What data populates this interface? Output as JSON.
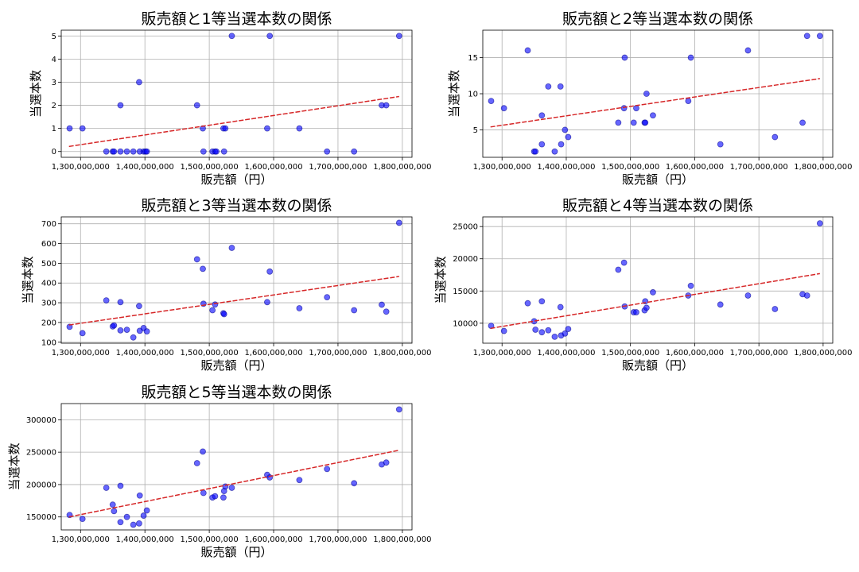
{
  "chart_data": [
    {
      "type": "scatter",
      "title": "販売額と1等当選本数の関係",
      "xlabel": "販売額（円）",
      "ylabel": "当選本数",
      "xlim": [
        1270000000,
        1815000000
      ],
      "ylim": [
        -0.25,
        5.25
      ],
      "xticks": [
        1300000000,
        1400000000,
        1500000000,
        1600000000,
        1700000000,
        1800000000
      ],
      "xtick_labels": [
        "1,300,000,000",
        "1,400,000,000",
        "1,500,000,000",
        "1,600,000,000",
        "1,700,000,000",
        "1,800,000,000"
      ],
      "yticks": [
        0,
        1,
        2,
        3,
        4,
        5
      ],
      "ytick_labels": [
        "0",
        "1",
        "2",
        "3",
        "4",
        "5"
      ],
      "grid": true,
      "trend": {
        "x": [
          1282000000,
          1795000000
        ],
        "y": [
          0.22,
          2.38
        ]
      },
      "points": [
        [
          1283000000,
          1
        ],
        [
          1303000000,
          1
        ],
        [
          1340000000,
          0
        ],
        [
          1350000000,
          0
        ],
        [
          1352000000,
          0
        ],
        [
          1362000000,
          2
        ],
        [
          1362000000,
          0
        ],
        [
          1372000000,
          0
        ],
        [
          1382000000,
          0
        ],
        [
          1391000000,
          3
        ],
        [
          1392000000,
          0
        ],
        [
          1398000000,
          0
        ],
        [
          1401000000,
          0
        ],
        [
          1403000000,
          0
        ],
        [
          1481000000,
          2
        ],
        [
          1490000000,
          1
        ],
        [
          1491000000,
          0
        ],
        [
          1505000000,
          0
        ],
        [
          1509000000,
          0
        ],
        [
          1511000000,
          0
        ],
        [
          1522000000,
          1
        ],
        [
          1523000000,
          0
        ],
        [
          1525000000,
          1
        ],
        [
          1535000000,
          5
        ],
        [
          1590000000,
          1
        ],
        [
          1594000000,
          5
        ],
        [
          1640000000,
          1
        ],
        [
          1683000000,
          0
        ],
        [
          1725000000,
          0
        ],
        [
          1768000000,
          2
        ],
        [
          1775000000,
          2
        ],
        [
          1795000000,
          5
        ]
      ]
    },
    {
      "type": "scatter",
      "title": "販売額と2等当選本数の関係",
      "xlabel": "販売額（円）",
      "ylabel": "当選本数",
      "xlim": [
        1270000000,
        1815000000
      ],
      "ylim": [
        1.2,
        18.8
      ],
      "xticks": [
        1300000000,
        1400000000,
        1500000000,
        1600000000,
        1700000000,
        1800000000
      ],
      "xtick_labels": [
        "1,300,000,000",
        "1,400,000,000",
        "1,500,000,000",
        "1,600,000,000",
        "1,700,000,000",
        "1,800,000,000"
      ],
      "yticks": [
        5,
        10,
        15
      ],
      "ytick_labels": [
        "5",
        "10",
        "15"
      ],
      "grid": true,
      "trend": {
        "x": [
          1282000000,
          1795000000
        ],
        "y": [
          5.4,
          12.1
        ]
      },
      "points": [
        [
          1283000000,
          9
        ],
        [
          1303000000,
          8
        ],
        [
          1340000000,
          16
        ],
        [
          1350000000,
          2
        ],
        [
          1352000000,
          2
        ],
        [
          1362000000,
          3
        ],
        [
          1362000000,
          7
        ],
        [
          1372000000,
          11
        ],
        [
          1382000000,
          2
        ],
        [
          1391000000,
          11
        ],
        [
          1392000000,
          3
        ],
        [
          1398000000,
          5
        ],
        [
          1403000000,
          4
        ],
        [
          1481000000,
          6
        ],
        [
          1490000000,
          8
        ],
        [
          1491000000,
          15
        ],
        [
          1505000000,
          6
        ],
        [
          1509000000,
          8
        ],
        [
          1522000000,
          6
        ],
        [
          1523000000,
          6
        ],
        [
          1525000000,
          10
        ],
        [
          1535000000,
          7
        ],
        [
          1590000000,
          9
        ],
        [
          1594000000,
          15
        ],
        [
          1640000000,
          3
        ],
        [
          1683000000,
          16
        ],
        [
          1725000000,
          4
        ],
        [
          1768000000,
          6
        ],
        [
          1775000000,
          18
        ],
        [
          1795000000,
          18
        ]
      ]
    },
    {
      "type": "scatter",
      "title": "販売額と3等当選本数の関係",
      "xlabel": "販売額（円）",
      "ylabel": "当選本数",
      "xlim": [
        1270000000,
        1815000000
      ],
      "ylim": [
        95,
        735
      ],
      "xticks": [
        1300000000,
        1400000000,
        1500000000,
        1600000000,
        1700000000,
        1800000000
      ],
      "xtick_labels": [
        "1,300,000,000",
        "1,400,000,000",
        "1,500,000,000",
        "1,600,000,000",
        "1,700,000,000",
        "1,800,000,000"
      ],
      "yticks": [
        100,
        200,
        300,
        400,
        500,
        600,
        700
      ],
      "ytick_labels": [
        "100",
        "200",
        "300",
        "400",
        "500",
        "600",
        "700"
      ],
      "grid": true,
      "trend": {
        "x": [
          1282000000,
          1795000000
        ],
        "y": [
          187,
          433
        ]
      },
      "points": [
        [
          1283000000,
          178
        ],
        [
          1303000000,
          146
        ],
        [
          1340000000,
          312
        ],
        [
          1350000000,
          180
        ],
        [
          1352000000,
          185
        ],
        [
          1362000000,
          160
        ],
        [
          1362000000,
          303
        ],
        [
          1372000000,
          163
        ],
        [
          1382000000,
          124
        ],
        [
          1391000000,
          283
        ],
        [
          1392000000,
          158
        ],
        [
          1398000000,
          172
        ],
        [
          1403000000,
          155
        ],
        [
          1481000000,
          520
        ],
        [
          1490000000,
          472
        ],
        [
          1491000000,
          295
        ],
        [
          1505000000,
          262
        ],
        [
          1509000000,
          291
        ],
        [
          1522000000,
          247
        ],
        [
          1523000000,
          242
        ],
        [
          1535000000,
          578
        ],
        [
          1590000000,
          303
        ],
        [
          1594000000,
          458
        ],
        [
          1640000000,
          272
        ],
        [
          1683000000,
          328
        ],
        [
          1725000000,
          262
        ],
        [
          1768000000,
          290
        ],
        [
          1775000000,
          255
        ],
        [
          1795000000,
          705
        ]
      ]
    },
    {
      "type": "scatter",
      "title": "販売額と4等当選本数の関係",
      "xlabel": "販売額（円）",
      "ylabel": "当選本数",
      "xlim": [
        1270000000,
        1815000000
      ],
      "ylim": [
        6900,
        26500
      ],
      "xticks": [
        1300000000,
        1400000000,
        1500000000,
        1600000000,
        1700000000,
        1800000000
      ],
      "xtick_labels": [
        "1,300,000,000",
        "1,400,000,000",
        "1,500,000,000",
        "1,600,000,000",
        "1,700,000,000",
        "1,800,000,000"
      ],
      "yticks": [
        10000,
        15000,
        20000,
        25000
      ],
      "ytick_labels": [
        "10000",
        "15000",
        "20000",
        "25000"
      ],
      "grid": true,
      "trend": {
        "x": [
          1282000000,
          1795000000
        ],
        "y": [
          9200,
          17700
        ]
      },
      "points": [
        [
          1283000000,
          9600
        ],
        [
          1303000000,
          8800
        ],
        [
          1340000000,
          13100
        ],
        [
          1350000000,
          10300
        ],
        [
          1352000000,
          9000
        ],
        [
          1362000000,
          13400
        ],
        [
          1362000000,
          8600
        ],
        [
          1372000000,
          8900
        ],
        [
          1382000000,
          7900
        ],
        [
          1391000000,
          12500
        ],
        [
          1392000000,
          8100
        ],
        [
          1398000000,
          8400
        ],
        [
          1403000000,
          9100
        ],
        [
          1481000000,
          18300
        ],
        [
          1490000000,
          19400
        ],
        [
          1491000000,
          12600
        ],
        [
          1505000000,
          11700
        ],
        [
          1509000000,
          11700
        ],
        [
          1522000000,
          12000
        ],
        [
          1523000000,
          13400
        ],
        [
          1525000000,
          12400
        ],
        [
          1535000000,
          14800
        ],
        [
          1590000000,
          14300
        ],
        [
          1594000000,
          15800
        ],
        [
          1640000000,
          12900
        ],
        [
          1683000000,
          14300
        ],
        [
          1725000000,
          12200
        ],
        [
          1768000000,
          14500
        ],
        [
          1775000000,
          14300
        ],
        [
          1795000000,
          25500
        ]
      ]
    },
    {
      "type": "scatter",
      "title": "販売額と5等当選本数の関係",
      "xlabel": "販売額（円）",
      "ylabel": "当選本数",
      "xlim": [
        1270000000,
        1815000000
      ],
      "ylim": [
        130000,
        325000
      ],
      "xticks": [
        1300000000,
        1400000000,
        1500000000,
        1600000000,
        1700000000,
        1800000000
      ],
      "xtick_labels": [
        "1,300,000,000",
        "1,400,000,000",
        "1,500,000,000",
        "1,600,000,000",
        "1,700,000,000",
        "1,800,000,000"
      ],
      "yticks": [
        150000,
        200000,
        250000,
        300000
      ],
      "ytick_labels": [
        "150000",
        "200000",
        "250000",
        "300000"
      ],
      "grid": true,
      "trend": {
        "x": [
          1282000000,
          1795000000
        ],
        "y": [
          150000,
          253000
        ]
      },
      "points": [
        [
          1283000000,
          153000
        ],
        [
          1303000000,
          147000
        ],
        [
          1340000000,
          195000
        ],
        [
          1350000000,
          169000
        ],
        [
          1352000000,
          159000
        ],
        [
          1362000000,
          198000
        ],
        [
          1362000000,
          142000
        ],
        [
          1372000000,
          150000
        ],
        [
          1382000000,
          138000
        ],
        [
          1391000000,
          140000
        ],
        [
          1392000000,
          183000
        ],
        [
          1398000000,
          152000
        ],
        [
          1403000000,
          160000
        ],
        [
          1481000000,
          233000
        ],
        [
          1490000000,
          251000
        ],
        [
          1491000000,
          187000
        ],
        [
          1505000000,
          180000
        ],
        [
          1509000000,
          182000
        ],
        [
          1522000000,
          180000
        ],
        [
          1523000000,
          190000
        ],
        [
          1525000000,
          197000
        ],
        [
          1535000000,
          195000
        ],
        [
          1590000000,
          215000
        ],
        [
          1594000000,
          211000
        ],
        [
          1640000000,
          207000
        ],
        [
          1683000000,
          224000
        ],
        [
          1725000000,
          202000
        ],
        [
          1768000000,
          231000
        ],
        [
          1775000000,
          234000
        ],
        [
          1795000000,
          316000
        ]
      ]
    }
  ]
}
